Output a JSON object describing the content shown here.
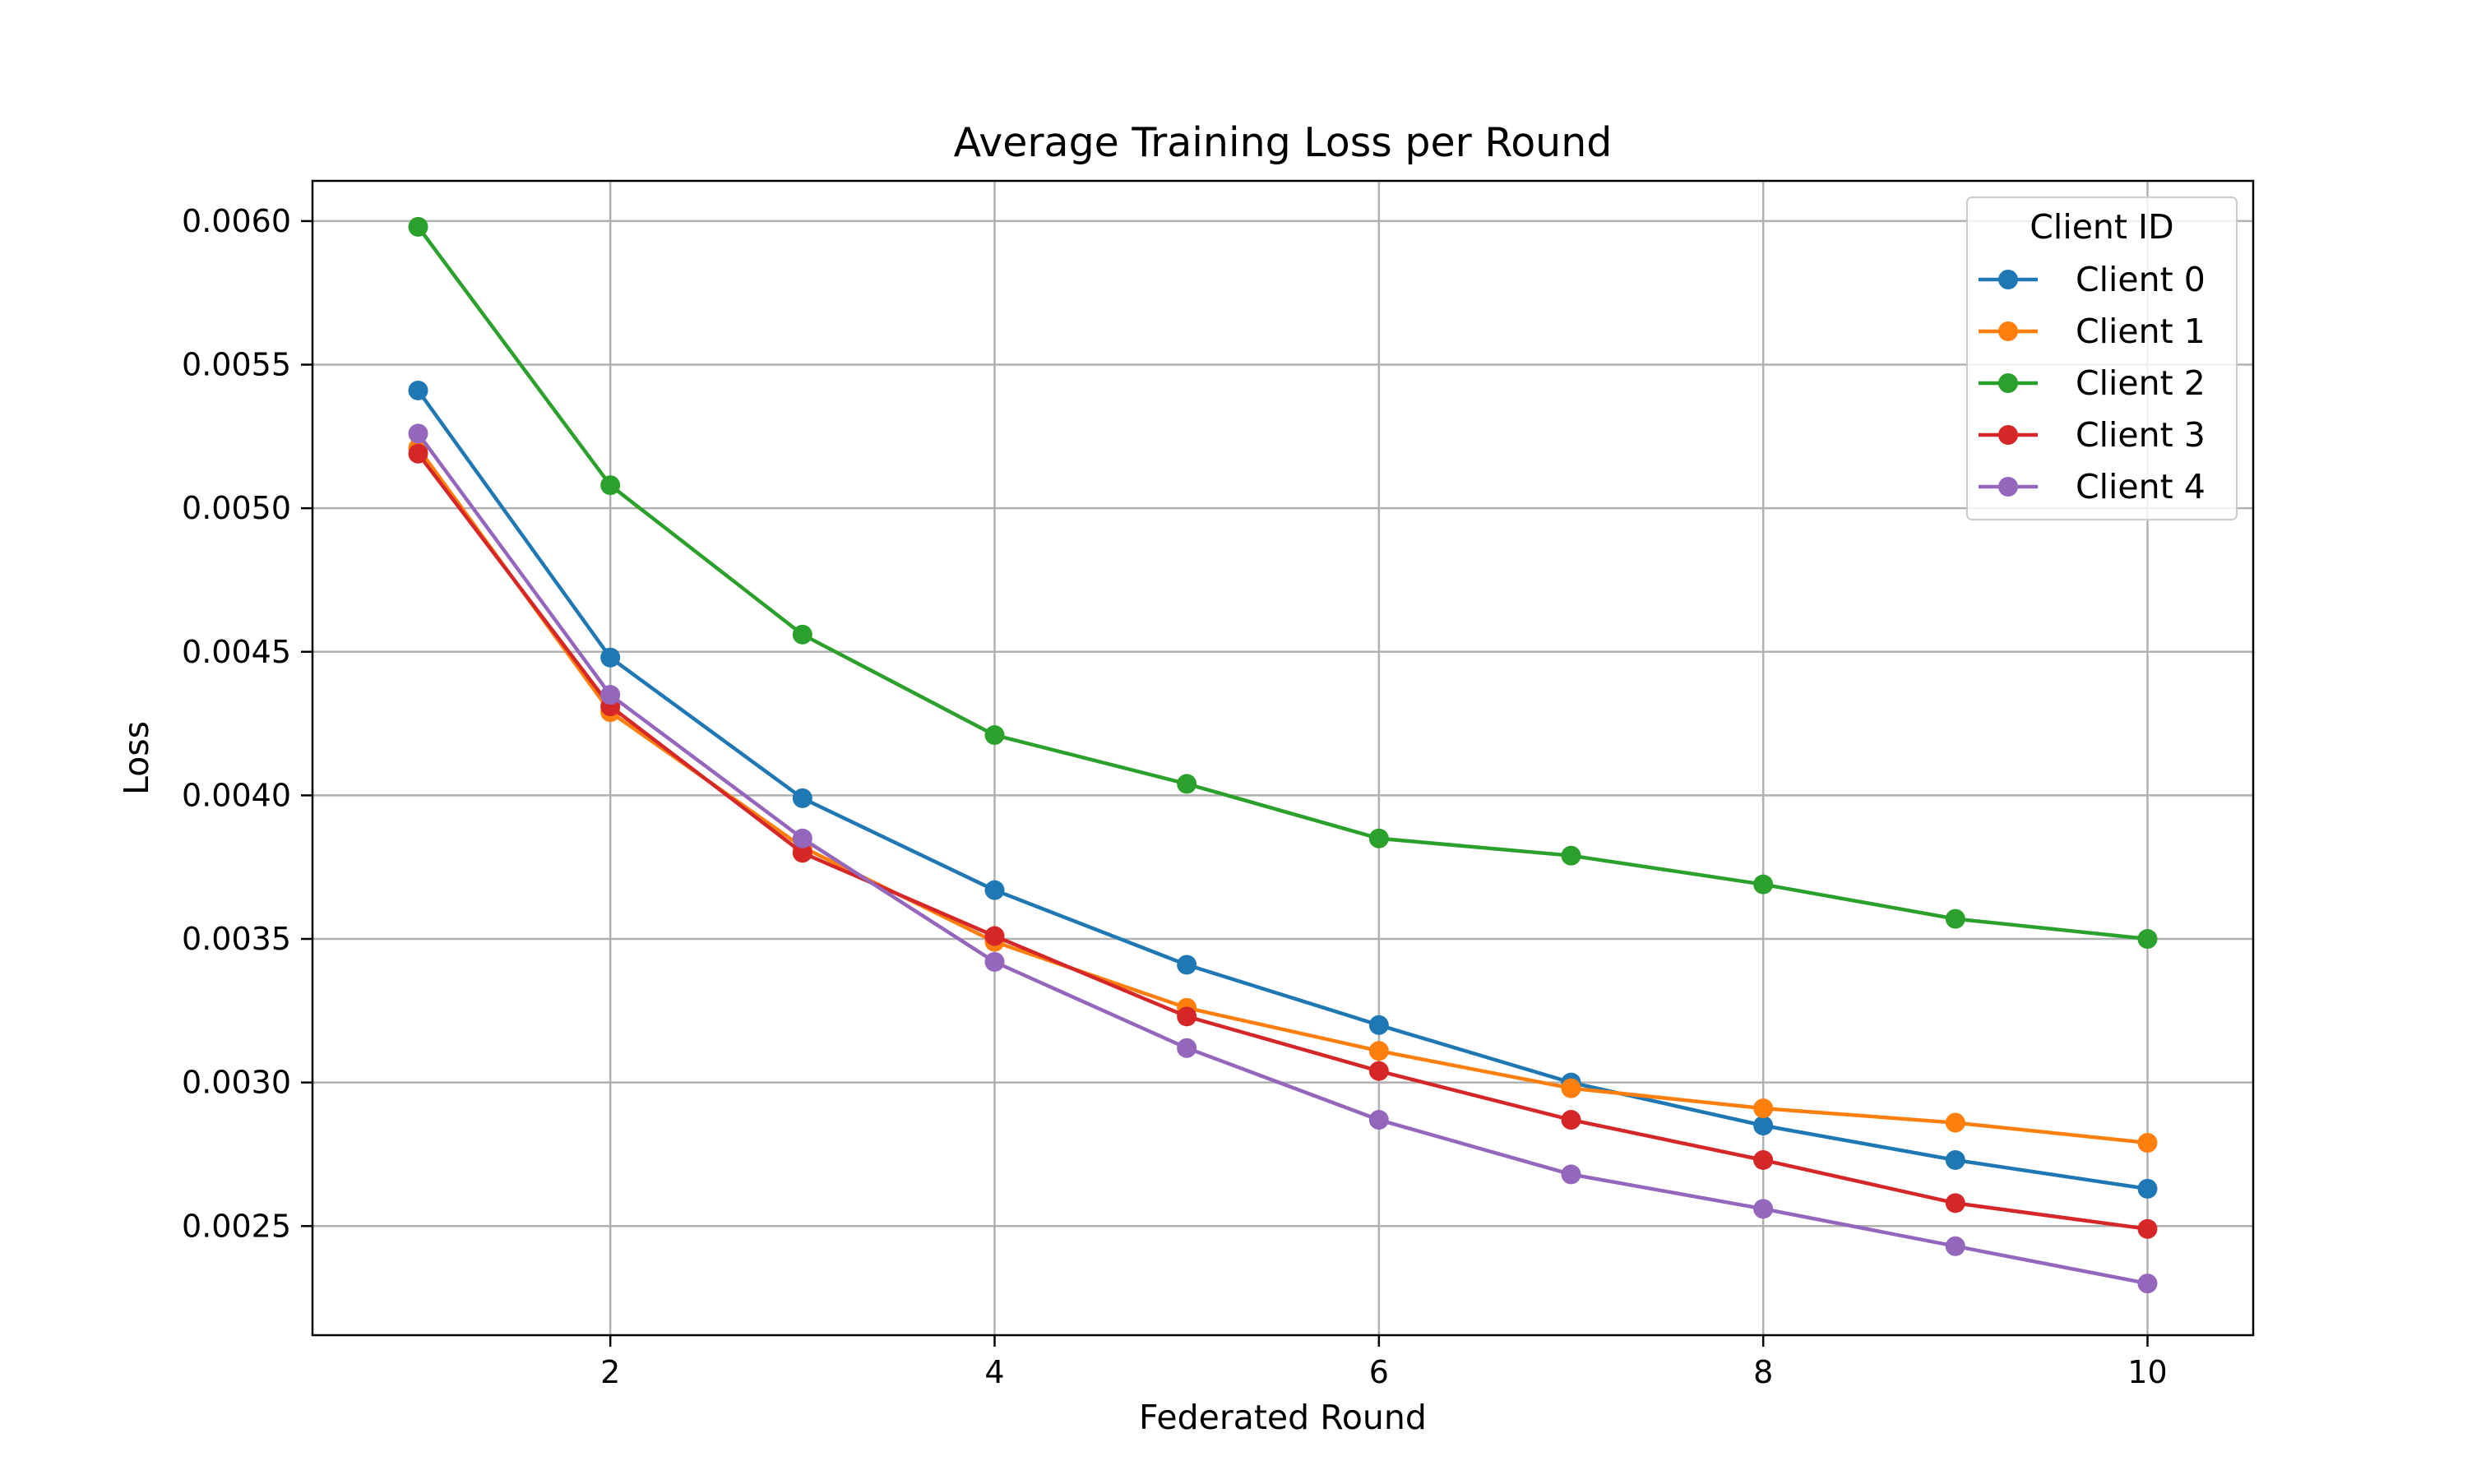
{
  "chart_data": {
    "type": "line",
    "title": "Average Training Loss per Round",
    "xlabel": "Federated Round",
    "ylabel": "Loss",
    "x": [
      1,
      2,
      3,
      4,
      5,
      6,
      7,
      8,
      9,
      10
    ],
    "xlim": [
      0.45,
      10.55
    ],
    "ylim": [
      0.00212,
      0.00614
    ],
    "xticks": [
      2,
      4,
      6,
      8,
      10
    ],
    "xtick_labels": [
      "2",
      "4",
      "6",
      "8",
      "10"
    ],
    "yticks": [
      0.0025,
      0.003,
      0.0035,
      0.004,
      0.0045,
      0.005,
      0.0055,
      0.006
    ],
    "ytick_labels": [
      "0.0025",
      "0.0030",
      "0.0035",
      "0.0040",
      "0.0045",
      "0.0050",
      "0.0055",
      "0.0060"
    ],
    "grid": true,
    "legend": {
      "title": "Client ID",
      "position": "top-right"
    },
    "series": [
      {
        "name": "Client 0",
        "color": "#1f77b4",
        "values": [
          0.00541,
          0.00448,
          0.00399,
          0.00367,
          0.00341,
          0.0032,
          0.003,
          0.00285,
          0.00273,
          0.00263
        ]
      },
      {
        "name": "Client 1",
        "color": "#ff7f0e",
        "values": [
          0.00521,
          0.00429,
          0.00382,
          0.00349,
          0.00326,
          0.00311,
          0.00298,
          0.00291,
          0.00286,
          0.00279
        ]
      },
      {
        "name": "Client 2",
        "color": "#2ca02c",
        "values": [
          0.00598,
          0.00508,
          0.00456,
          0.00421,
          0.00404,
          0.00385,
          0.00379,
          0.00369,
          0.00357,
          0.0035
        ]
      },
      {
        "name": "Client 3",
        "color": "#d62728",
        "values": [
          0.00519,
          0.00431,
          0.0038,
          0.00351,
          0.00323,
          0.00304,
          0.00287,
          0.00273,
          0.00258,
          0.00249
        ]
      },
      {
        "name": "Client 4",
        "color": "#9467bd",
        "values": [
          0.00526,
          0.00435,
          0.00385,
          0.00342,
          0.00312,
          0.00287,
          0.00268,
          0.00256,
          0.00243,
          0.0023
        ]
      }
    ]
  }
}
